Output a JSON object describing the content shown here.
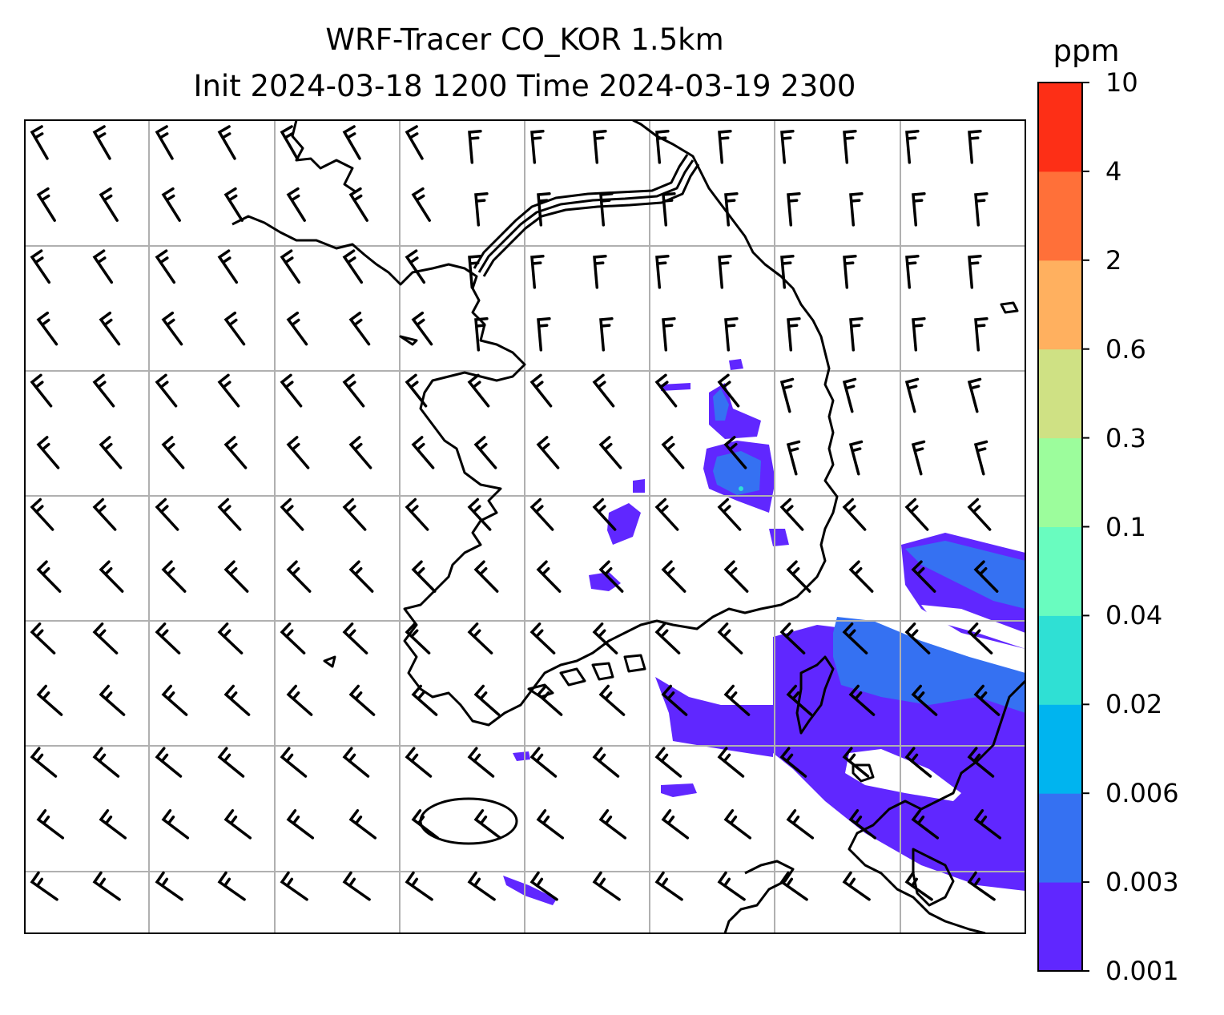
{
  "title": {
    "line1": "WRF-Tracer CO_KOR 1.5km",
    "line2": "Init 2024-03-18 1200 Time 2024-03-19 2300"
  },
  "colorbar": {
    "unit": "ppm",
    "levels": [
      "0.001",
      "0.003",
      "0.006",
      "0.02",
      "0.04",
      "0.1",
      "0.3",
      "0.6",
      "2",
      "4",
      "10"
    ],
    "colors": [
      "#6027ff",
      "#3571f2",
      "#00b4ef",
      "#2fe0d4",
      "#69fcbf",
      "#9cfd9c",
      "#cfe184",
      "#ffb05f",
      "#ff7039",
      "#fd2f16"
    ]
  },
  "map": {
    "background": "#ffffff",
    "gridline_color": "#b0b0b0",
    "coastline_color": "#000000",
    "field": "CO tracer concentration with wind barbs"
  }
}
